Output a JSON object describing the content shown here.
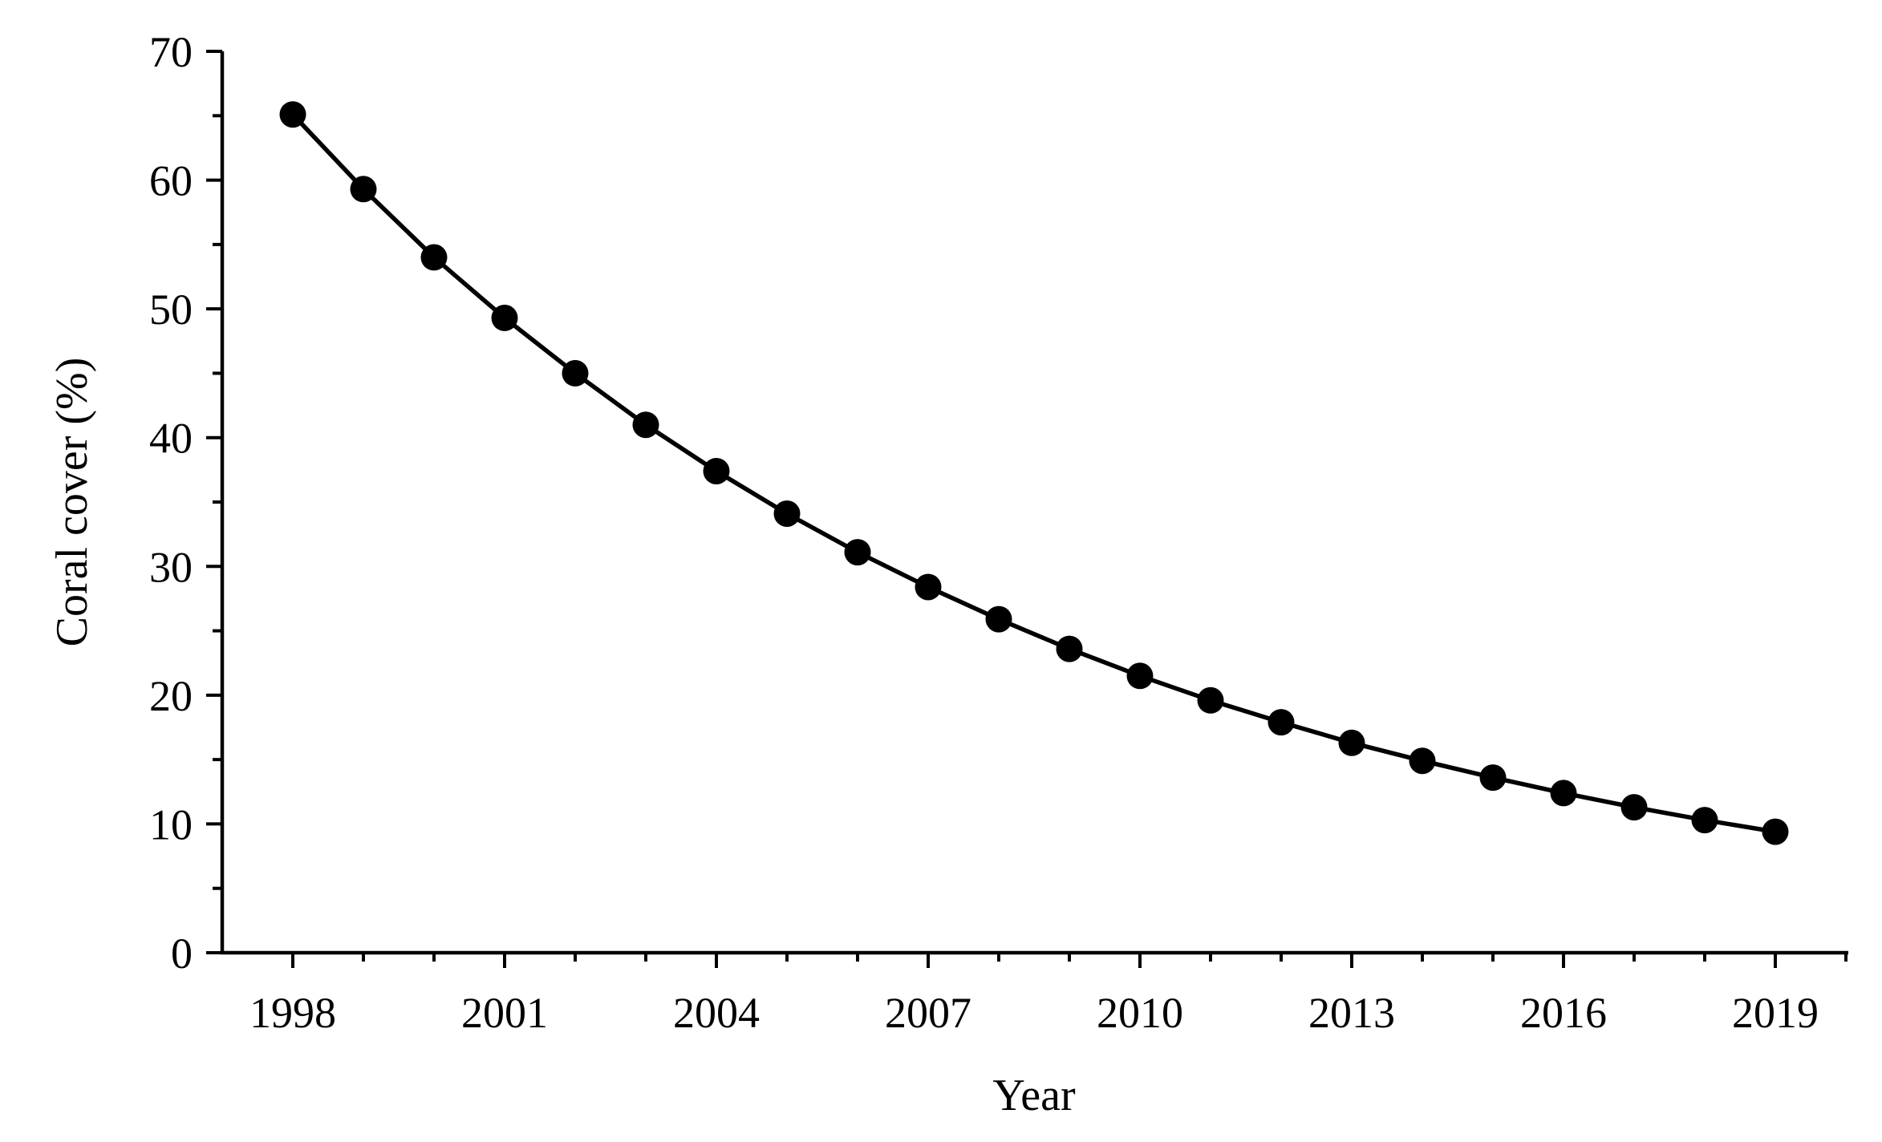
{
  "figure": {
    "background_color": "#ffffff",
    "foreground_color": "#000000"
  },
  "chart_data": {
    "type": "line",
    "title": "",
    "xlabel": "Year",
    "ylabel": "Coral cover (%)",
    "x": [
      1998,
      1999,
      2000,
      2001,
      2002,
      2003,
      2004,
      2005,
      2006,
      2007,
      2008,
      2009,
      2010,
      2011,
      2012,
      2013,
      2014,
      2015,
      2016,
      2017,
      2018,
      2019
    ],
    "values": [
      65.1,
      59.3,
      54.0,
      49.3,
      45.0,
      41.0,
      37.4,
      34.1,
      31.1,
      28.4,
      25.9,
      23.6,
      21.5,
      19.6,
      17.9,
      16.3,
      14.9,
      13.6,
      12.4,
      11.3,
      10.3,
      9.4
    ],
    "xlim": [
      1997,
      2020
    ],
    "ylim": [
      0,
      70
    ],
    "x_major_ticks": [
      1998,
      2001,
      2004,
      2007,
      2010,
      2013,
      2016,
      2019
    ],
    "x_minor_tick_years": [
      1999,
      2000,
      2002,
      2003,
      2005,
      2006,
      2008,
      2009,
      2011,
      2012,
      2014,
      2015,
      2017,
      2018,
      2020
    ],
    "y_major_ticks": [
      0,
      10,
      20,
      30,
      40,
      50,
      60,
      70
    ],
    "y_minor_ticks": [
      5,
      15,
      25,
      35,
      45,
      55,
      65
    ],
    "grid": false,
    "legend": null,
    "marker": "filled-circle",
    "line_color": "#000000",
    "marker_color": "#000000"
  }
}
